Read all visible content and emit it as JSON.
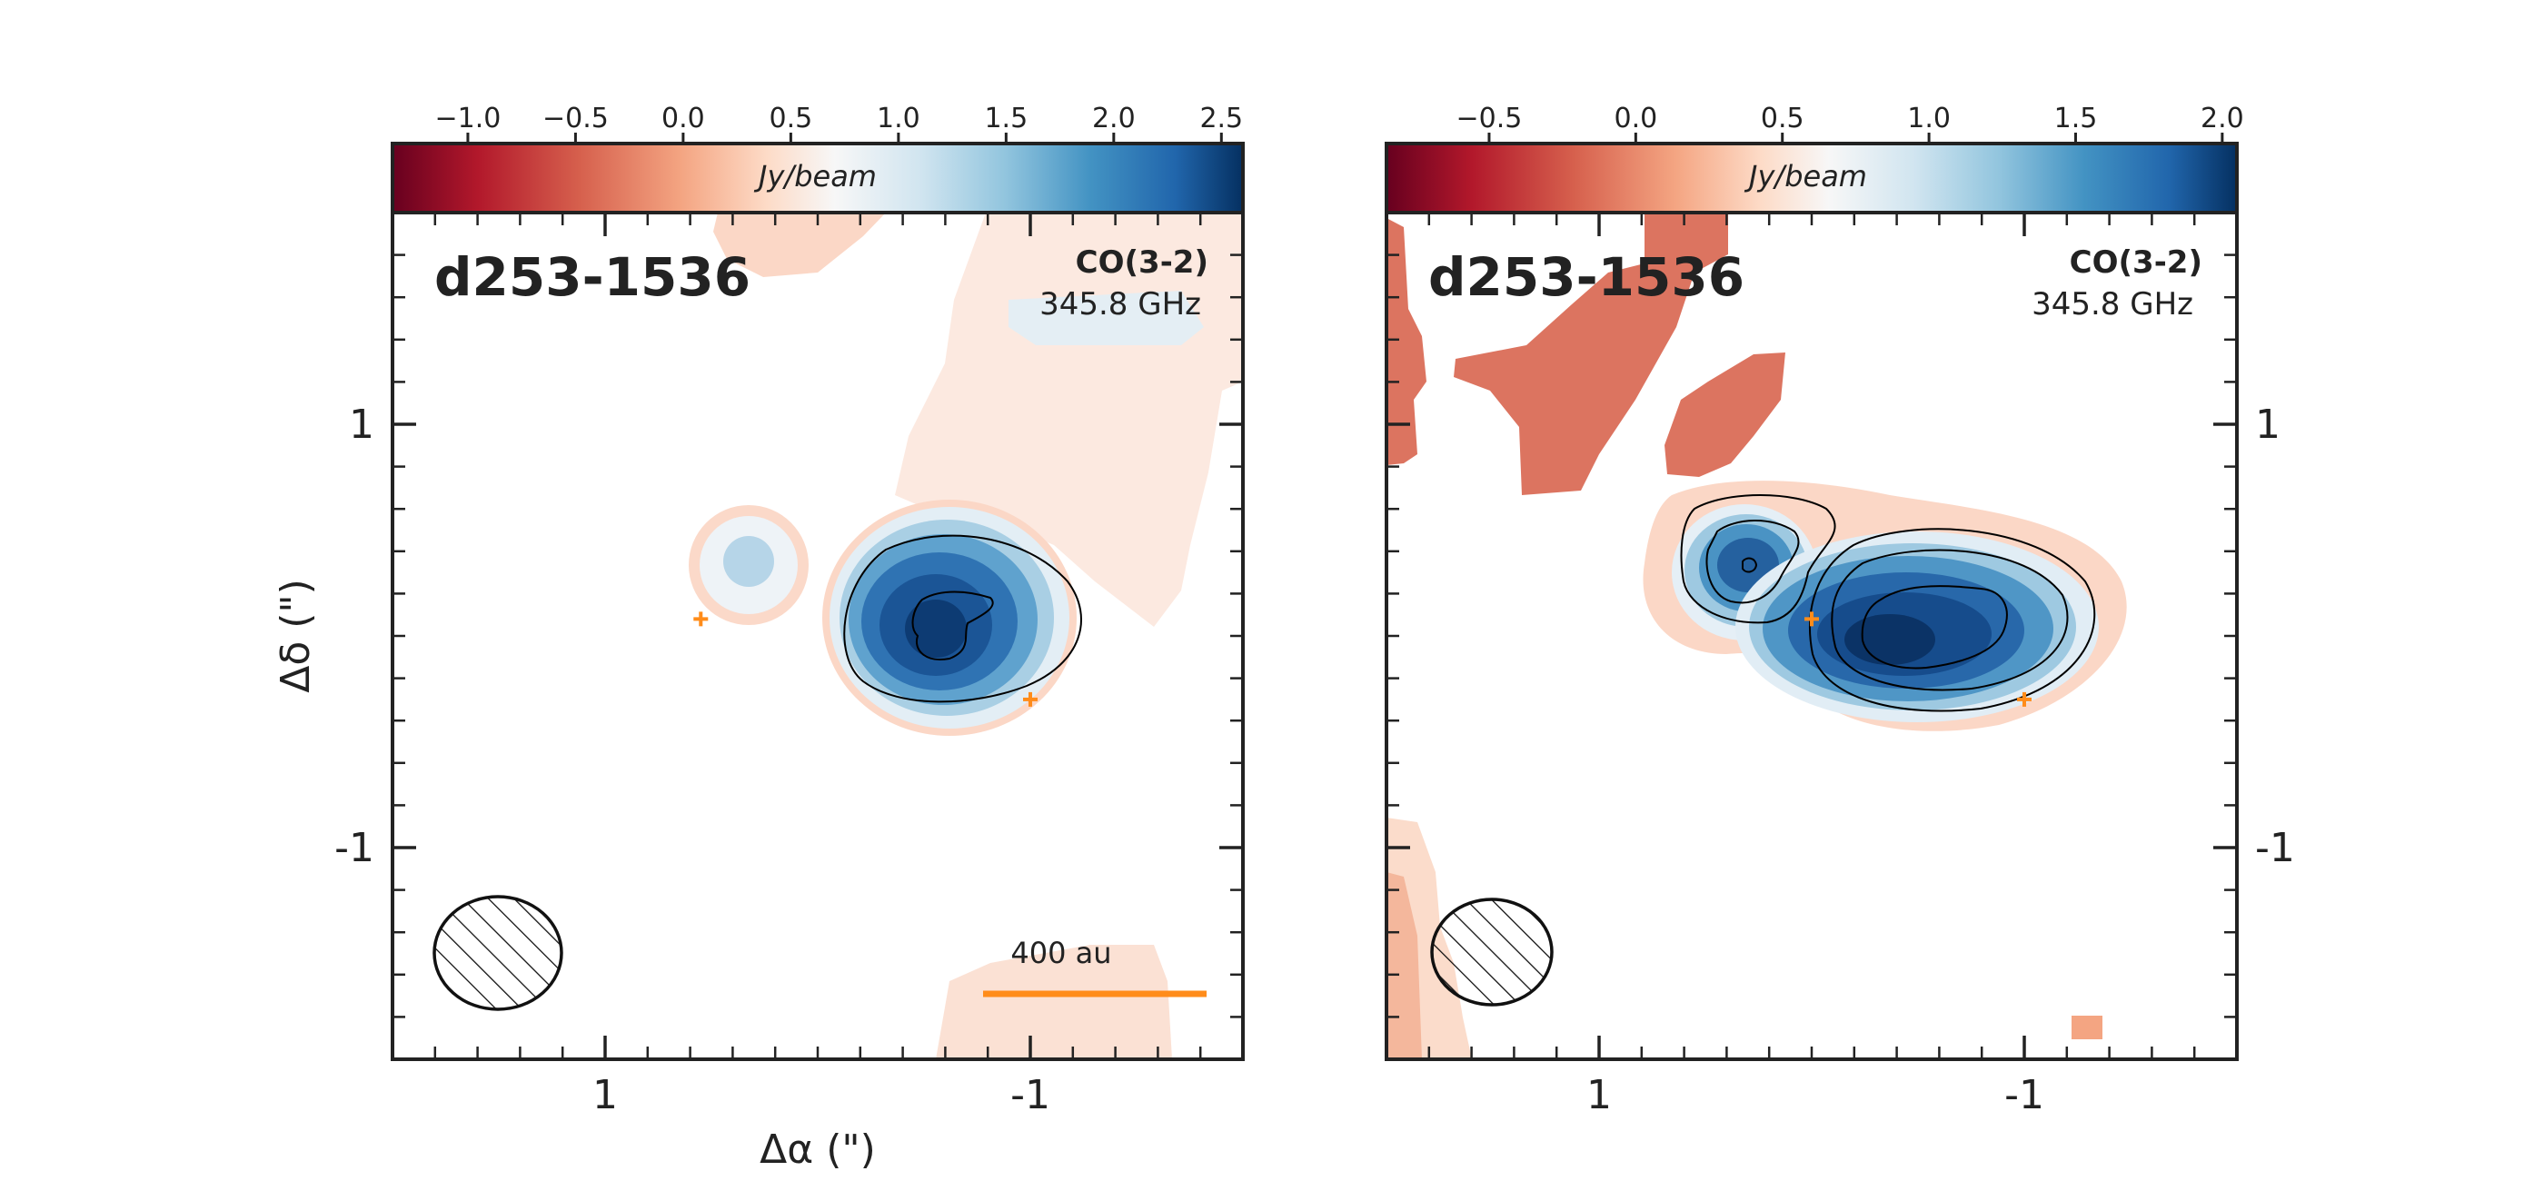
{
  "chart_data": [
    {
      "type": "heatmap",
      "source_name": "d253-1536",
      "line_label": "CO(3-2)",
      "frequency_label": "345.8 GHz",
      "colorbar": {
        "label": "Jy/beam",
        "range": [
          -1.35,
          2.6
        ],
        "ticks": [
          -1.0,
          -0.5,
          0.0,
          0.5,
          1.0,
          1.5,
          2.0,
          2.5
        ],
        "tick_labels": [
          "−1.0",
          "−0.5",
          "0.0",
          "0.5",
          "1.0",
          "1.5",
          "2.0",
          "2.5"
        ]
      },
      "xlabel": "Δα (\")",
      "ylabel": "Δδ (\")",
      "xlim": [
        2.0,
        -2.0
      ],
      "ylim": [
        -2.0,
        2.0
      ],
      "x_ticks": [
        1,
        -1
      ],
      "x_tick_labels": [
        "1",
        "-1"
      ],
      "y_ticks": [
        1,
        -1
      ],
      "y_tick_labels": [
        "1",
        "-1"
      ],
      "scale_bar_label": "400 au",
      "markers": [
        {
          "x": 0.55,
          "y": 0.08
        },
        {
          "x": -1.0,
          "y": -0.3
        }
      ],
      "hatched_beam": true
    },
    {
      "type": "heatmap",
      "source_name": "d253-1536",
      "line_label": "CO(3-2)",
      "frequency_label": "345.8 GHz",
      "colorbar": {
        "label": "Jy/beam",
        "range": [
          -0.85,
          2.05
        ],
        "ticks": [
          -0.5,
          0.0,
          0.5,
          1.0,
          1.5,
          2.0
        ],
        "tick_labels": [
          "−0.5",
          "0.0",
          "0.5",
          "1.0",
          "1.5",
          "2.0"
        ]
      },
      "xlim": [
        2.0,
        -2.0
      ],
      "ylim": [
        -2.0,
        2.0
      ],
      "x_ticks": [
        1,
        -1
      ],
      "x_tick_labels": [
        "1",
        "-1"
      ],
      "y_ticks": [
        1,
        -1
      ],
      "y_tick_labels": [
        "1",
        "-1"
      ],
      "markers": [
        {
          "x": 0.0,
          "y": 0.08
        },
        {
          "x": -1.0,
          "y": -0.3
        }
      ],
      "hatched_beam": true
    }
  ],
  "colors": {
    "scale_bar": "#ff8c1a",
    "marker": "#ff8c1a",
    "contour": "#000000",
    "frame": "#222222"
  }
}
